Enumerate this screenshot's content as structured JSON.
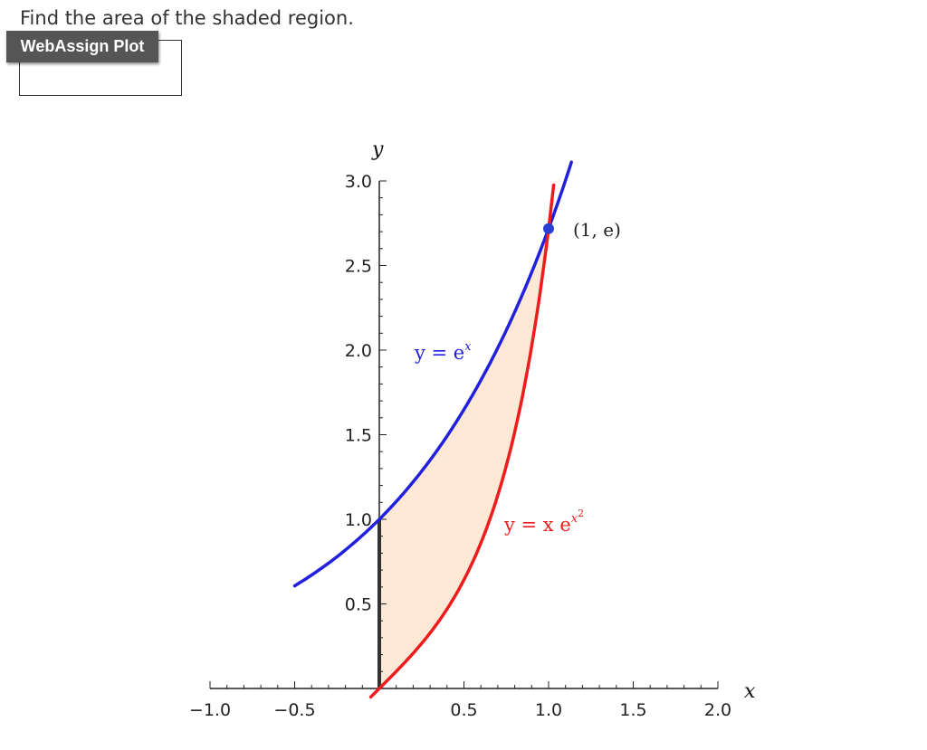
{
  "prompt": "Find the area of the shaded region.",
  "plot_button_label": "WebAssign Plot",
  "chart_data": {
    "type": "line",
    "title": "",
    "xlabel": "x",
    "ylabel": "y",
    "xlim": [
      -1.0,
      2.0
    ],
    "ylim": [
      0,
      3.0
    ],
    "x_tick_labels": [
      "−1.0",
      "−0.5",
      "0.5",
      "1.0",
      "1.5",
      "2.0"
    ],
    "x_tick_values": [
      -1.0,
      -0.5,
      0.5,
      1.0,
      1.5,
      2.0
    ],
    "y_tick_labels": [
      "0.5",
      "1.0",
      "1.5",
      "2.0",
      "2.5",
      "3.0"
    ],
    "y_tick_values": [
      0.5,
      1.0,
      1.5,
      2.0,
      2.5,
      3.0
    ],
    "series": [
      {
        "label": "y = e^x",
        "color": "#2020dd",
        "x": [
          -0.5,
          -0.25,
          0,
          0.25,
          0.5,
          0.75,
          1.0,
          1.05,
          1.1,
          1.135
        ],
        "y": [
          0.607,
          0.779,
          1.0,
          1.284,
          1.649,
          2.117,
          2.718,
          2.858,
          3.004,
          3.111
        ]
      },
      {
        "label": "y = x e^(x^2)",
        "color": "#ee1c1c",
        "x": [
          -0.05,
          0,
          0.2,
          0.4,
          0.6,
          0.8,
          0.9,
          1.0,
          1.03
        ],
        "y": [
          -0.05,
          0,
          0.208,
          0.469,
          0.861,
          1.517,
          2.022,
          2.718,
          2.924
        ]
      }
    ],
    "shaded_region": {
      "x_from": 0,
      "x_to": 1.0,
      "upper": "y = e^x",
      "lower": "y = x e^(x^2)",
      "color": "#fde9d6"
    },
    "point": {
      "x": 1.0,
      "y": 2.718,
      "label": "(1, e)",
      "color": "#2a3fd6"
    },
    "legend": "none",
    "grid": false
  }
}
